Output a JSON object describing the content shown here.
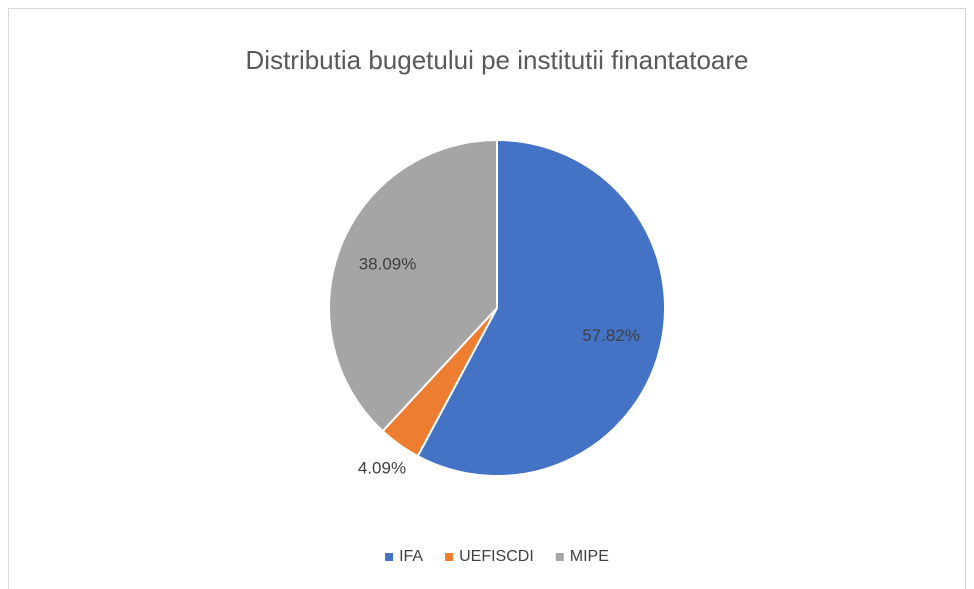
{
  "chart_data": {
    "type": "pie",
    "title": "Distributia bugetului pe institutii finantatoare",
    "categories": [
      "IFA",
      "UEFISCDI",
      "MIPE"
    ],
    "values": [
      57.82,
      4.09,
      38.09
    ],
    "value_labels": [
      "57.82%",
      "4.09%",
      "38.09%"
    ],
    "colors": [
      "#4472c4",
      "#ed7d31",
      "#a5a5a5"
    ],
    "legend": "bottom"
  }
}
